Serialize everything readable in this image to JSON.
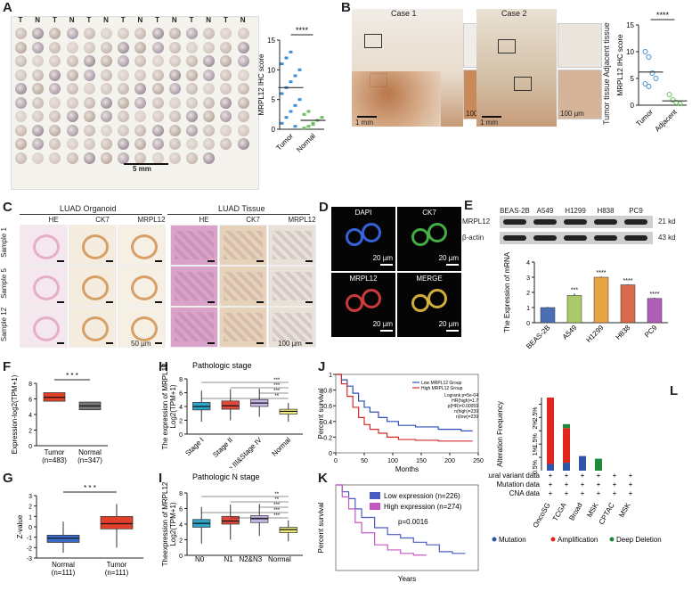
{
  "figure": {
    "panels": {
      "A": "A",
      "B": "B",
      "C": "C",
      "D": "D",
      "E": "E",
      "F": "F",
      "G": "G",
      "H": "H",
      "I": "I",
      "J": "J",
      "K": "K",
      "L": "L"
    }
  },
  "panelA": {
    "tn_header": [
      "T",
      "N",
      "T",
      "N",
      "T",
      "N",
      "T",
      "N",
      "T",
      "N",
      "T",
      "N",
      "T",
      "N"
    ],
    "scale": "5 mm"
  },
  "panelB": {
    "case1": "Case 1",
    "case2": "Case 2",
    "scale1": "1 mm",
    "scale2": "100 µm",
    "scale3": "1 mm",
    "scale4": "100 µm",
    "side_label": "Tumor tissue  Adjacent tissue"
  },
  "panelC": {
    "group1": "LUAD Organoid",
    "group2": "LUAD Tissue",
    "cols": [
      "HE",
      "CK7",
      "MRPL12",
      "HE",
      "CK7",
      "MRPL12"
    ],
    "rows": [
      "Sample 1",
      "Sample 5",
      "Sample 12"
    ],
    "scale_left": "50 µm",
    "scale_right": "100 µm"
  },
  "panelD": {
    "labels": [
      "DAPI",
      "CK7",
      "MRPL12",
      "MERGE"
    ],
    "scales": [
      "20 µm",
      "20 µm",
      "20 µm",
      "20 µm"
    ]
  },
  "panelE": {
    "lanes": [
      "BEAS-2B",
      "A549",
      "H1299",
      "H838",
      "PC9"
    ],
    "rows": [
      "MRPL12",
      "β-actin"
    ],
    "kd": [
      "21 kd",
      "43 kd"
    ]
  },
  "panelJ": {
    "legend": [
      "Low MRPL12 Group",
      "High MRPL12 Group"
    ],
    "stats": [
      "Logrank p=5e-04",
      "HR(high)=1.7",
      "p(HR)=0.00059",
      "n(high)=239",
      "n(low)=239"
    ]
  },
  "chart_data": [
    {
      "panel": "A",
      "type": "scatter",
      "categories": [
        "Tumor",
        "Normal"
      ],
      "ylabel": "MRPL12 IHC score",
      "ylim": [
        0,
        15
      ],
      "yticks": [
        0,
        5,
        10,
        15
      ],
      "means": [
        7,
        1.5
      ],
      "significance": "****"
    },
    {
      "panel": "B",
      "type": "scatter",
      "categories": [
        "Tumor",
        "Adjacent"
      ],
      "ylabel": "MRPL12 IHC score",
      "ylim": [
        0,
        15
      ],
      "yticks": [
        0,
        5,
        10,
        15
      ],
      "means": [
        6.2,
        0.8
      ],
      "points": [
        [
          10,
          9,
          6,
          5,
          4,
          3.5
        ],
        [
          2,
          1,
          0.5,
          0.3
        ]
      ],
      "significance": "****"
    },
    {
      "panel": "E",
      "type": "bar",
      "categories": [
        "BEAS-2B",
        "A549",
        "H1299",
        "H838",
        "PC9"
      ],
      "values": [
        1.0,
        1.8,
        3.0,
        2.5,
        1.6
      ],
      "errors": [
        0.04,
        0.12,
        0.05,
        0.04,
        0.05
      ],
      "colors": [
        "#4a6fb5",
        "#a9c96a",
        "#e6a542",
        "#d66a4a",
        "#b05db8"
      ],
      "stars": [
        "",
        "***",
        "****",
        "****",
        "****"
      ],
      "ylabel": "The Expression of mRNA",
      "ylim": [
        0,
        4
      ],
      "yticks": [
        0,
        1,
        2,
        3,
        4
      ]
    },
    {
      "panel": "F",
      "type": "box",
      "categories": [
        "Tumor\n(n=483)",
        "Normal\n(n=347)"
      ],
      "tick_top": [
        "Tumor",
        "Normal"
      ],
      "tick_bottom": [
        "(n=483)",
        "(n=347)"
      ],
      "ylabel": "Expression-log2(TPM+1)",
      "ylim": [
        0,
        8
      ],
      "yticks": [
        0,
        2,
        4,
        6,
        8
      ],
      "boxes": [
        {
          "q1": 5.7,
          "median": 6.2,
          "q3": 6.8,
          "color": "#e0402a"
        },
        {
          "q1": 4.6,
          "median": 5.1,
          "q3": 5.6,
          "color": "#777777"
        }
      ],
      "significance": "* * *"
    },
    {
      "panel": "G",
      "type": "box",
      "categories": [
        "Normal\n(n=111)",
        "Tumor\n(n=111)"
      ],
      "tick_top": [
        "Normal",
        "Tumor"
      ],
      "tick_bottom": [
        "(n=111)",
        "(n=111)"
      ],
      "ylabel": "Z-value",
      "ylim": [
        -3,
        3
      ],
      "yticks": [
        -3,
        -2,
        -1,
        0,
        1,
        2,
        3
      ],
      "boxes": [
        {
          "min": -2.5,
          "q1": -1.5,
          "median": -1.1,
          "q3": -0.8,
          "max": 0.5,
          "color": "#3b6cc7"
        },
        {
          "min": -2.0,
          "q1": -0.2,
          "median": 0.3,
          "q3": 1.0,
          "max": 2.2,
          "color": "#e0402a"
        }
      ],
      "significance": "* * *"
    },
    {
      "panel": "H",
      "type": "box",
      "title": "Pathologic stage",
      "categories": [
        "Stage I",
        "Stage II",
        "Stage III&Stage IV",
        "Normal"
      ],
      "ylabel": "The expression of MRPL12",
      "ylabel2": "Log2(TPM+1)",
      "ylim": [
        0,
        8
      ],
      "yticks": [
        0,
        2,
        4,
        6,
        8
      ],
      "boxes": [
        {
          "min": 1.8,
          "q1": 3.5,
          "median": 4.0,
          "q3": 4.6,
          "max": 6.3,
          "color": "#2fa6c7"
        },
        {
          "min": 2.0,
          "q1": 3.6,
          "median": 4.1,
          "q3": 4.8,
          "max": 6.5,
          "color": "#e04a3c"
        },
        {
          "min": 2.5,
          "q1": 4.0,
          "median": 4.5,
          "q3": 5.0,
          "max": 6.6,
          "color": "#c7b7e6"
        },
        {
          "min": 1.8,
          "q1": 2.9,
          "median": 3.3,
          "q3": 3.6,
          "max": 4.5,
          "color": "#eeea7a"
        }
      ],
      "sig": [
        "***",
        "***",
        "***",
        "**"
      ]
    },
    {
      "panel": "I",
      "type": "box",
      "title": "Pathologic N stage",
      "categories": [
        "N0",
        "N1",
        "N2&N3",
        "Normal"
      ],
      "ylabel": "Theexpression of MRPL12",
      "ylabel2": "Log2(TPM+1)",
      "ylim": [
        0,
        8
      ],
      "yticks": [
        0,
        2,
        4,
        6,
        8
      ],
      "boxes": [
        {
          "min": 1.5,
          "q1": 3.6,
          "median": 4.1,
          "q3": 4.6,
          "max": 6.2,
          "color": "#2fa6c7"
        },
        {
          "min": 2.0,
          "q1": 4.0,
          "median": 4.4,
          "q3": 5.0,
          "max": 6.5,
          "color": "#e04a3c"
        },
        {
          "min": 2.5,
          "q1": 4.2,
          "median": 4.7,
          "q3": 5.1,
          "max": 6.6,
          "color": "#c7b7e6"
        },
        {
          "min": 1.8,
          "q1": 2.9,
          "median": 3.3,
          "q3": 3.6,
          "max": 4.5,
          "color": "#eeea7a"
        }
      ],
      "sig": [
        "**",
        "**",
        "***",
        "***",
        "***"
      ]
    },
    {
      "panel": "J",
      "type": "line",
      "xlabel": "Months",
      "ylabel": "Percent survival",
      "xlim": [
        0,
        250
      ],
      "ylim": [
        0,
        1
      ],
      "xticks": [
        0,
        50,
        100,
        150,
        200,
        250
      ],
      "yticks": [
        0,
        0.2,
        0.4,
        0.6,
        0.8,
        1.0
      ],
      "series": [
        {
          "name": "Low MRPL12 Group",
          "color": "#2b4fb5",
          "x": [
            0,
            10,
            20,
            30,
            40,
            50,
            60,
            75,
            90,
            110,
            140,
            180,
            220,
            240
          ],
          "y": [
            1.0,
            0.93,
            0.85,
            0.76,
            0.66,
            0.58,
            0.52,
            0.45,
            0.4,
            0.35,
            0.33,
            0.3,
            0.28,
            0.28
          ]
        },
        {
          "name": "High MRPL12 Group",
          "color": "#d62a2a",
          "x": [
            0,
            10,
            20,
            30,
            40,
            50,
            60,
            75,
            90,
            110,
            140,
            180,
            220,
            240
          ],
          "y": [
            1.0,
            0.88,
            0.72,
            0.58,
            0.45,
            0.36,
            0.3,
            0.25,
            0.2,
            0.17,
            0.16,
            0.15,
            0.15,
            0.15
          ]
        }
      ]
    },
    {
      "panel": "K",
      "type": "line",
      "xlabel": "Years",
      "ylabel": "Percent survival",
      "xlim": [
        0,
        22
      ],
      "ylim": [
        0,
        1
      ],
      "legend": [
        "Low expression (n=226)",
        "High expression (n=274)"
      ],
      "annotation": "p=0.0016",
      "series": [
        {
          "name": "Low expression (n=226)",
          "color": "#4a5cc2",
          "x": [
            0,
            1,
            2,
            3,
            4,
            6,
            8,
            10,
            12,
            14,
            16,
            18,
            20
          ],
          "y": [
            1.0,
            0.92,
            0.84,
            0.72,
            0.62,
            0.5,
            0.42,
            0.38,
            0.33,
            0.3,
            0.22,
            0.2,
            0.2
          ]
        },
        {
          "name": "High expression (n=274)",
          "color": "#c25ac2",
          "x": [
            0,
            1,
            2,
            3,
            4,
            6,
            8,
            10,
            12,
            14
          ],
          "y": [
            1.0,
            0.86,
            0.72,
            0.56,
            0.44,
            0.3,
            0.24,
            0.2,
            0.18,
            0.18
          ]
        }
      ]
    },
    {
      "panel": "L",
      "type": "bar",
      "ylabel": "Alteration Frequency",
      "yticks": [
        "0.5%",
        "1%",
        "1.5%",
        "2%",
        "2.5%"
      ],
      "categories": [
        "OncoSG",
        "TCGA",
        "Broad",
        "MSK",
        "CPTAC",
        "MSK"
      ],
      "row_labels": [
        "Structural variant data",
        "Mutation data",
        "CNA data"
      ],
      "legend": [
        "Mutation",
        "Amplification",
        "Deep Deletion"
      ],
      "legend_colors": [
        "#2f55a8",
        "#e0261d",
        "#1b8a3a"
      ],
      "stacks": [
        {
          "mutation": 0.25,
          "amplification": 2.5,
          "deep_deletion": 0
        },
        {
          "mutation": 0.3,
          "amplification": 1.3,
          "deep_deletion": 0.15
        },
        {
          "mutation": 0.55,
          "amplification": 0,
          "deep_deletion": 0
        },
        {
          "mutation": 0,
          "amplification": 0,
          "deep_deletion": 0.45
        },
        {
          "mutation": 0,
          "amplification": 0,
          "deep_deletion": 0
        },
        {
          "mutation": 0,
          "amplification": 0,
          "deep_deletion": 0
        }
      ],
      "ymax": 2.75
    }
  ]
}
